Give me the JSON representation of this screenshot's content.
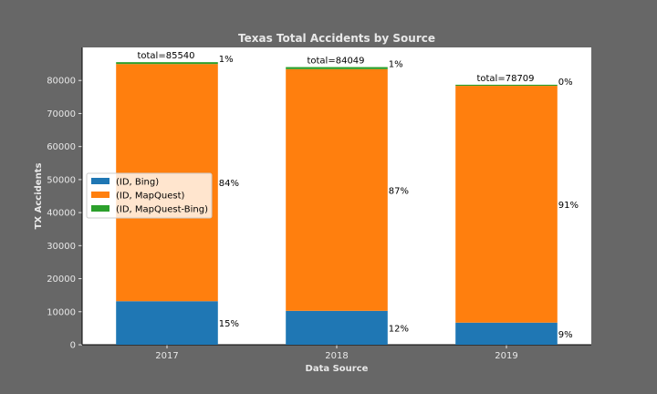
{
  "chart_data": {
    "type": "bar",
    "stacked": true,
    "title": "Texas Total Accidents by Source",
    "xlabel": "Data Source",
    "ylabel": "TX Accidents",
    "categories": [
      "2017",
      "2018",
      "2019"
    ],
    "ylim": [
      0,
      90000
    ],
    "yticks": [
      0,
      10000,
      20000,
      30000,
      40000,
      50000,
      60000,
      70000,
      80000
    ],
    "series": [
      {
        "name": "(ID, Bing)",
        "color": "#1f77b4",
        "values": [
          13183,
          10264,
          6696
        ],
        "labels": [
          "15%",
          "12%",
          "9%"
        ]
      },
      {
        "name": "(ID, MapQuest)",
        "color": "#ff7f0e",
        "values": [
          71791,
          73162,
          71688
        ],
        "labels": [
          "84%",
          "87%",
          "91%"
        ]
      },
      {
        "name": "(ID, MapQuest-Bing)",
        "color": "#2ca02c",
        "values": [
          566,
          623,
          325
        ],
        "labels": [
          "1%",
          "1%",
          "0%"
        ]
      }
    ],
    "totals": [
      "total=85540",
      "total=84049",
      "total=78709"
    ],
    "legend_position": "center-left",
    "grid": false
  }
}
